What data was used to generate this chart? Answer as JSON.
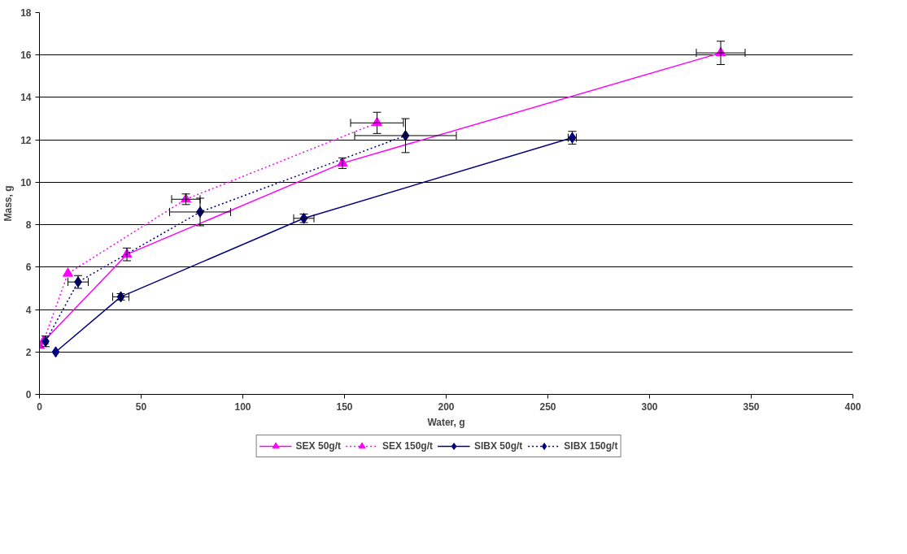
{
  "chart_data": {
    "type": "line",
    "xlabel": "Water, g",
    "ylabel": "Mass, g",
    "xlim": [
      0,
      400
    ],
    "ylim": [
      0,
      18
    ],
    "xticks": [
      0,
      50,
      100,
      150,
      200,
      250,
      300,
      350,
      400
    ],
    "yticks": [
      0,
      2,
      4,
      6,
      8,
      10,
      12,
      14,
      16,
      18
    ],
    "grid": "y",
    "legend": "bottom",
    "series": [
      {
        "name": "SEX 50g/t",
        "color": "#ff00ff",
        "marker": "triangle",
        "line_style": "solid",
        "x": [
          0,
          43,
          149,
          335
        ],
        "values": [
          2.3,
          6.6,
          10.9,
          16.1
        ],
        "errors": [
          null,
          0.3,
          0.25,
          0.55
        ],
        "xerrors": [
          null,
          null,
          null,
          12
        ]
      },
      {
        "name": "SEX 150g/t",
        "color": "#ff00ff",
        "marker": "triangle",
        "line_style": "dotted",
        "x": [
          2,
          14,
          72,
          166
        ],
        "values": [
          2.5,
          5.7,
          9.2,
          12.8
        ],
        "errors": [
          null,
          null,
          0.25,
          0.5
        ],
        "xerrors": [
          null,
          null,
          7,
          13
        ]
      },
      {
        "name": "SIBX 50g/t",
        "color": "#000080",
        "marker": "diamond",
        "line_style": "solid",
        "x": [
          8,
          40,
          130,
          262
        ],
        "values": [
          2.0,
          4.6,
          8.3,
          12.1
        ],
        "errors": [
          null,
          0.15,
          0.2,
          0.3
        ],
        "xerrors": [
          null,
          4,
          5,
          2
        ]
      },
      {
        "name": "SIBX 150g/t",
        "color": "#000080",
        "marker": "diamond",
        "line_style": "dotted",
        "x": [
          3,
          19,
          79,
          180
        ],
        "values": [
          2.5,
          5.3,
          8.6,
          12.2
        ],
        "errors": [
          0.25,
          0.3,
          0.65,
          0.8
        ],
        "xerrors": [
          null,
          5,
          15,
          25
        ]
      }
    ]
  }
}
